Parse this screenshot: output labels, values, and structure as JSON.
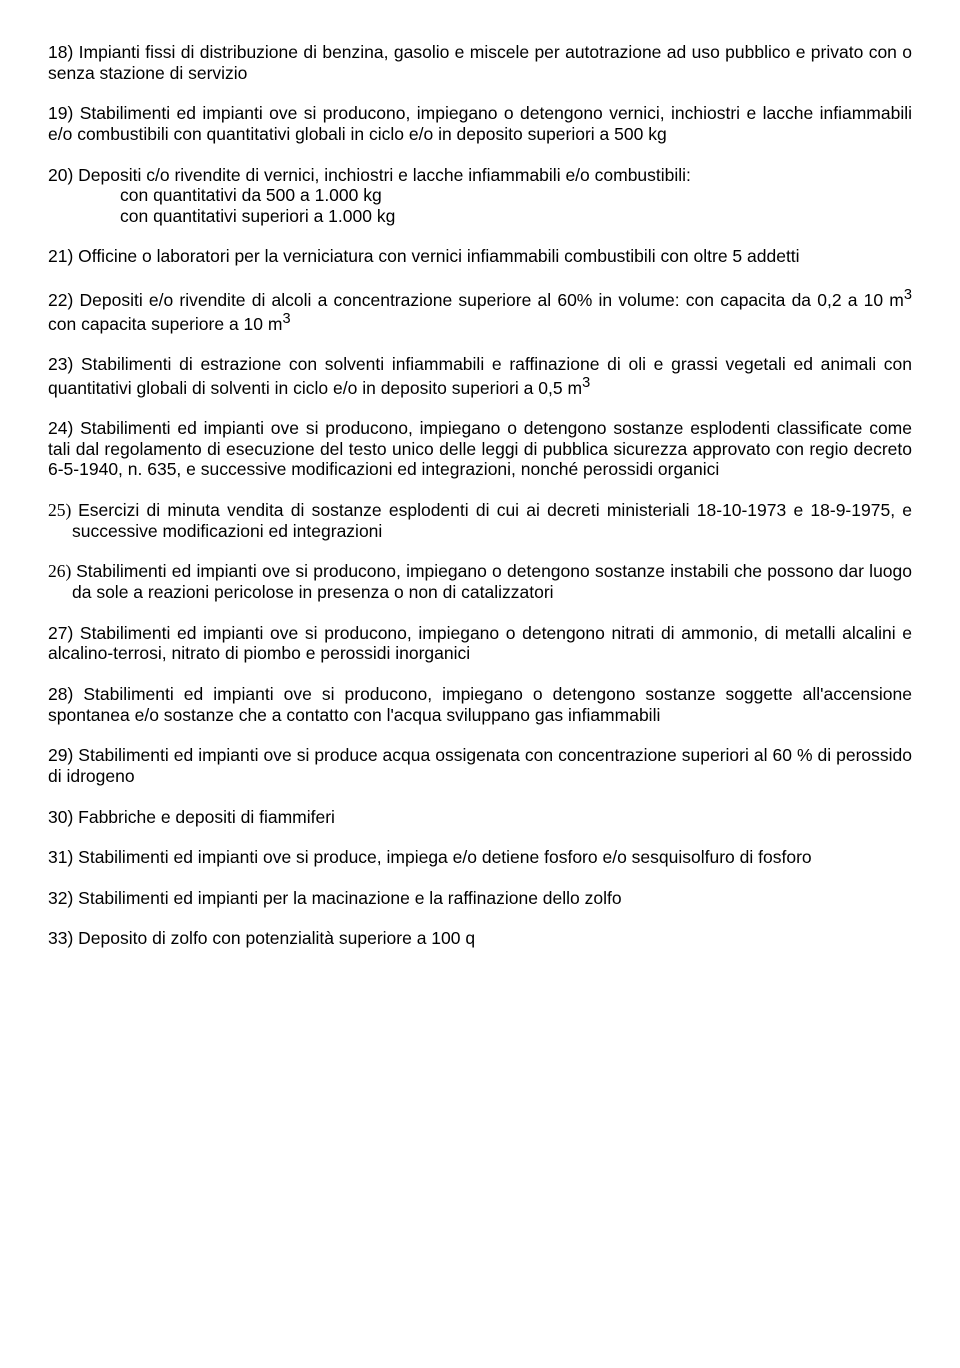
{
  "items": {
    "p18": "18) Impianti fissi di distribuzione di benzina, gasolio e miscele per autotrazione ad uso pubblico e privato con o senza stazione di servizio",
    "p19": "19) Stabilimenti ed impianti ove si producono, impiegano o detengono vernici, inchiostri e lacche infiammabili e/o combustibili con quantitativi globali in ciclo e/o in deposito superiori a 500 kg",
    "p20_intro": "20) Depositi c/o rivendite di vernici, inchiostri e lacche infiammabili e/o combustibili:",
    "p20_line1": "con quantitativi da 500 a 1.000 kg",
    "p20_line2": "con quantitativi superiori a 1.000 kg",
    "p21": "21) Officine o laboratori per la verniciatura con vernici infiammabili combustibili con oltre 5 addetti",
    "p22_a": "22) Depositi e/o rivendite di alcoli a concentrazione superiore al 60% in volume: con capacita da 0,2 a 10 m",
    "p22_b": " con capacita superiore a 10 m",
    "p23_a": "23) Stabilimenti di estrazione con solventi infiammabili e raffinazione di oli e grassi vegetali ed animali con quantitativi globali di solventi in ciclo e/o in deposito superiori a 0,5 m",
    "p24": "24) Stabilimenti ed impianti ove si producono, impiegano o detengono sostanze esplodenti classificate come tali dal regolamento di esecuzione del testo unico delle leggi di pubblica sicurezza approvato con regio decreto 6-5-1940, n. 635, e successive modificazioni ed integrazioni, nonché perossidi organici",
    "p25": "Esercizi di minuta vendita di sostanze esplodenti di cui ai decreti ministeriali 18-10-1973 e 18-9-1975, e successive modificazioni ed integrazioni",
    "p25_num": "25) ",
    "p26": "Stabilimenti ed impianti ove si producono, impiegano o detengono sostanze instabili che possono dar luogo da sole a reazioni pericolose in presenza o non di catalizzatori",
    "p26_num": "26) ",
    "p27": "27) Stabilimenti ed impianti ove si producono, impiegano o detengono nitrati di ammonio, di metalli alcalini e alcalino-terrosi, nitrato di piombo e perossidi inorganici",
    "p28": "28) Stabilimenti ed impianti ove si producono, impiegano o detengono sostanze soggette all'accensione spontanea e/o sostanze che a contatto con l'acqua sviluppano gas infiammabili",
    "p29": "29) Stabilimenti ed impianti ove si produce acqua ossigenata con concentrazione superiori al 60 % di perossido di idrogeno",
    "p30": "30) Fabbriche e depositi di fiammiferi",
    "p31": "31) Stabilimenti ed impianti ove si produce, impiega e/o detiene fosforo e/o sesquisolfuro di fosforo",
    "p32": "32) Stabilimenti ed impianti per la macinazione e la raffinazione dello zolfo",
    "p33": "33) Deposito di zolfo con potenzialità superiore a 100 q",
    "sup3": "3"
  }
}
